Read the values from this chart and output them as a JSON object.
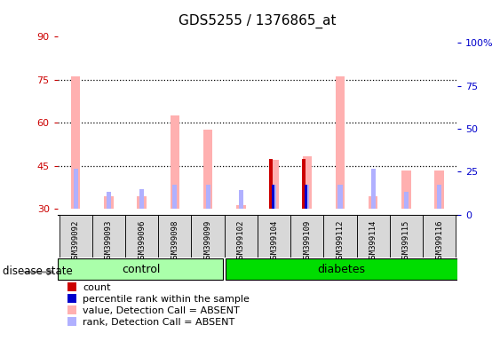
{
  "title": "GDS5255 / 1376865_at",
  "samples": [
    "GSM399092",
    "GSM399093",
    "GSM399096",
    "GSM399098",
    "GSM399099",
    "GSM399102",
    "GSM399104",
    "GSM399109",
    "GSM399112",
    "GSM399114",
    "GSM399115",
    "GSM399116"
  ],
  "groups": [
    "control",
    "control",
    "control",
    "control",
    "control",
    "diabetes",
    "diabetes",
    "diabetes",
    "diabetes",
    "diabetes",
    "diabetes",
    "diabetes"
  ],
  "n_control": 5,
  "n_diabetes": 7,
  "ylim_left": [
    28,
    92
  ],
  "yticks_left": [
    30,
    45,
    60,
    75,
    90
  ],
  "ylim_right": [
    0,
    107
  ],
  "yticks_right": [
    0,
    25,
    50,
    75,
    100
  ],
  "ylabel_left_color": "#cc0000",
  "ylabel_right_color": "#0000cc",
  "dotted_lines": [
    45,
    60,
    75
  ],
  "value_absent_bars": [
    76.0,
    34.5,
    34.5,
    62.5,
    57.5,
    31.5,
    47.0,
    48.5,
    76.0,
    34.5,
    43.5,
    43.5
  ],
  "rank_absent_bars": [
    44.0,
    36.0,
    37.0,
    38.5,
    38.5,
    36.5,
    38.5,
    38.5,
    38.5,
    44.0,
    36.0,
    38.5
  ],
  "count_bars": [
    0,
    0,
    0,
    0,
    0,
    0,
    47.5,
    47.5,
    0,
    0,
    0,
    0
  ],
  "percentile_bars": [
    0,
    0,
    0,
    0,
    0,
    0,
    38.5,
    38.5,
    0,
    0,
    0,
    0
  ],
  "bar_bottom": 30,
  "color_value_absent": "#ffb0b0",
  "color_rank_absent": "#b0b0ff",
  "color_count": "#cc0000",
  "color_percentile": "#0000cc",
  "control_color": "#aaffaa",
  "diabetes_color": "#00dd00",
  "legend_items": [
    {
      "label": "count",
      "color": "#cc0000"
    },
    {
      "label": "percentile rank within the sample",
      "color": "#0000cc"
    },
    {
      "label": "value, Detection Call = ABSENT",
      "color": "#ffb0b0"
    },
    {
      "label": "rank, Detection Call = ABSENT",
      "color": "#b0b0ff"
    }
  ],
  "group_label": "disease state",
  "background_color": "#ffffff",
  "plot_bg_color": "#ffffff"
}
